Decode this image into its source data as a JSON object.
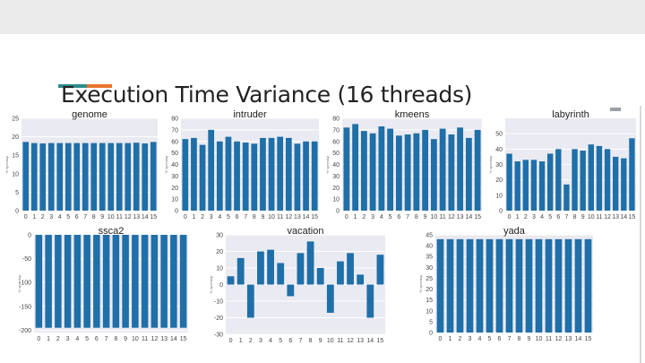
{
  "slide": {
    "title": "Execution Time Variance (16 threads)",
    "accent_colors": [
      "#2e8b8b",
      "#e8742a"
    ]
  },
  "bar_color": "#1f6fa8",
  "chart_data": [
    {
      "type": "bar",
      "title": "genome",
      "categories": [
        "0",
        "1",
        "2",
        "3",
        "4",
        "5",
        "6",
        "7",
        "8",
        "9",
        "10",
        "11",
        "12",
        "13",
        "14",
        "15"
      ],
      "values": [
        18.6,
        18.3,
        18.2,
        18.3,
        18.3,
        18.3,
        18.3,
        18.3,
        18.3,
        18.3,
        18.3,
        18.3,
        18.3,
        18.4,
        18.2,
        18.6
      ],
      "ylim": [
        0,
        25
      ],
      "yticks": [
        0,
        5,
        10,
        15,
        20,
        25
      ],
      "ylabel": "% speedup",
      "grid": true
    },
    {
      "type": "bar",
      "title": "intruder",
      "categories": [
        "0",
        "1",
        "2",
        "3",
        "4",
        "5",
        "6",
        "7",
        "8",
        "9",
        "10",
        "11",
        "12",
        "13",
        "14",
        "15"
      ],
      "values": [
        62,
        63,
        57,
        70,
        60,
        64,
        60,
        59,
        58,
        63,
        63,
        64,
        63,
        58,
        60,
        60
      ],
      "ylim": [
        0,
        80
      ],
      "yticks": [
        0,
        10,
        20,
        30,
        40,
        50,
        60,
        70,
        80
      ],
      "ylabel": "% speedup",
      "grid": true
    },
    {
      "type": "bar",
      "title": "kmeens",
      "categories": [
        "0",
        "1",
        "2",
        "3",
        "4",
        "5",
        "6",
        "7",
        "8",
        "9",
        "10",
        "11",
        "12",
        "13",
        "14",
        "15"
      ],
      "values": [
        72,
        75,
        69,
        67,
        73,
        71,
        65,
        66,
        67,
        70,
        62,
        71,
        66,
        72,
        63,
        70
      ],
      "ylim": [
        0,
        80
      ],
      "yticks": [
        0,
        10,
        20,
        30,
        40,
        50,
        60,
        70,
        80
      ],
      "ylabel": "% speedup",
      "grid": true
    },
    {
      "type": "bar",
      "title": "labyrinth",
      "categories": [
        "0",
        "1",
        "2",
        "3",
        "4",
        "5",
        "6",
        "7",
        "8",
        "9",
        "10",
        "11",
        "12",
        "13",
        "14",
        "15"
      ],
      "values": [
        37,
        32,
        33,
        33,
        32,
        37,
        40,
        17,
        40,
        39,
        43,
        42,
        40,
        35,
        34,
        47
      ],
      "ylim": [
        0,
        60
      ],
      "yticks": [
        0,
        10,
        20,
        30,
        40,
        50
      ],
      "ylabel": "% speedup",
      "grid": true
    },
    {
      "type": "bar",
      "title": "ssca2",
      "categories": [
        "0",
        "1",
        "2",
        "3",
        "4",
        "5",
        "6",
        "7",
        "8",
        "9",
        "10",
        "11",
        "12",
        "13",
        "14",
        "15"
      ],
      "values": [
        -195,
        -195,
        -195,
        -195,
        -195,
        -195,
        -195,
        -195,
        -195,
        -195,
        -195,
        -195,
        -195,
        -195,
        -195,
        -195
      ],
      "ylim": [
        -205,
        0
      ],
      "yticks": [
        0,
        -50,
        -100,
        -150,
        -200
      ],
      "ylabel": "% speedup",
      "grid": true
    },
    {
      "type": "bar",
      "title": "vacation",
      "categories": [
        "0",
        "1",
        "2",
        "3",
        "4",
        "5",
        "6",
        "7",
        "8",
        "9",
        "10",
        "11",
        "12",
        "13",
        "14",
        "15"
      ],
      "values": [
        5,
        16,
        -20,
        20,
        21,
        13,
        -7,
        19,
        26,
        10,
        -17,
        14,
        19,
        6,
        -20,
        18
      ],
      "ylim": [
        -30,
        30
      ],
      "yticks": [
        30,
        20,
        10,
        0,
        -10,
        -20,
        -30
      ],
      "ylabel": "% speedup",
      "grid": true
    },
    {
      "type": "bar",
      "title": "yada",
      "categories": [
        "0",
        "1",
        "2",
        "3",
        "4",
        "5",
        "6",
        "7",
        "8",
        "9",
        "10",
        "11",
        "12",
        "13",
        "14",
        "15"
      ],
      "values": [
        43,
        43,
        43,
        43,
        43,
        43,
        43,
        43,
        43,
        43,
        43,
        43,
        43,
        43,
        43,
        43
      ],
      "ylim": [
        0,
        45
      ],
      "yticks": [
        0,
        5,
        10,
        15,
        20,
        25,
        30,
        35,
        40,
        45
      ],
      "ylabel": "% speedup",
      "grid": true
    }
  ]
}
